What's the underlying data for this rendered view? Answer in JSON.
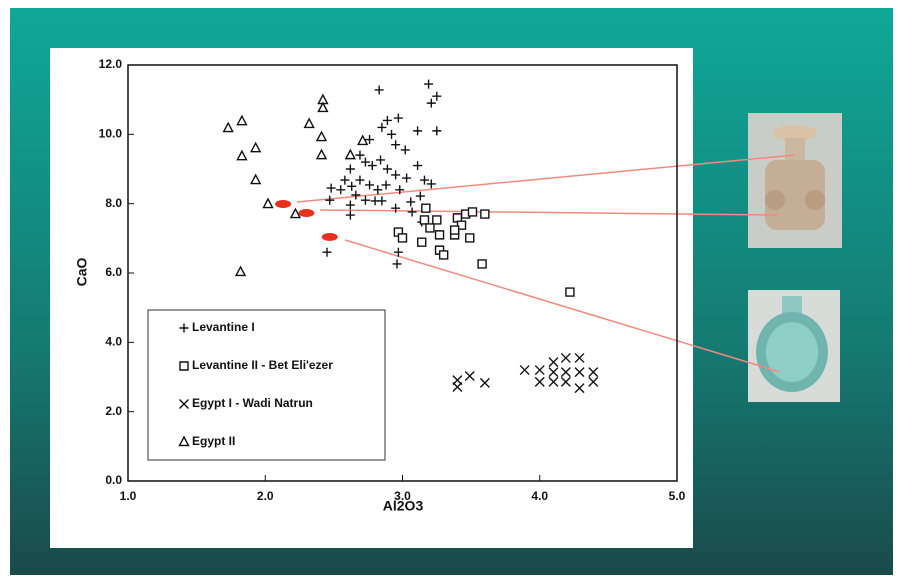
{
  "chart_data": {
    "type": "scatter",
    "xlabel": "Al2O3",
    "ylabel": "CaO",
    "xlim": [
      1,
      5
    ],
    "ylim": [
      0,
      12
    ],
    "xticks": [
      {
        "value": 1,
        "label": "1.0"
      },
      {
        "value": 2,
        "label": "2.0"
      },
      {
        "value": 3,
        "label": "3.0"
      },
      {
        "value": 4,
        "label": "4.0"
      },
      {
        "value": 5,
        "label": "5.0"
      }
    ],
    "yticks": [
      {
        "value": 0,
        "label": "0.0"
      },
      {
        "value": 2,
        "label": "2.0"
      },
      {
        "value": 4,
        "label": "4.0"
      },
      {
        "value": 6,
        "label": "6.0"
      },
      {
        "value": 8,
        "label": "8.0"
      },
      {
        "value": 10,
        "label": "10.0"
      },
      {
        "value": 12,
        "label": "12.0"
      }
    ],
    "legend": "lower left",
    "series": [
      {
        "name": "Levantine I",
        "marker": "plus",
        "color": "#111111",
        "x": [
          3.19,
          3.25,
          3.21,
          2.83,
          3.25,
          3.11,
          2.97,
          2.89,
          2.85,
          2.92,
          3.02,
          2.95,
          2.76,
          2.69,
          2.73,
          2.78,
          2.84,
          2.89,
          2.95,
          3.03,
          3.11,
          3.16,
          3.21,
          2.62,
          2.58,
          2.63,
          2.69,
          2.76,
          2.82,
          2.88,
          2.98,
          2.55,
          2.66,
          2.73,
          2.8,
          2.85,
          2.48,
          2.47,
          2.62,
          3.07,
          3.13,
          3.14,
          2.62,
          2.45,
          2.97,
          2.96,
          2.95,
          3.06
        ],
        "values": [
          11.45,
          11.1,
          10.9,
          11.28,
          10.1,
          10.1,
          10.47,
          10.4,
          10.2,
          10.0,
          9.55,
          9.7,
          9.85,
          9.4,
          9.2,
          9.1,
          9.26,
          9.0,
          8.83,
          8.74,
          9.1,
          8.68,
          8.57,
          9.0,
          8.68,
          8.5,
          8.68,
          8.54,
          8.4,
          8.54,
          8.4,
          8.4,
          8.25,
          8.1,
          8.08,
          8.08,
          8.45,
          8.1,
          7.96,
          7.76,
          8.22,
          7.47,
          7.67,
          6.6,
          6.6,
          6.26,
          7.87,
          8.05
        ]
      },
      {
        "name": "Levantine II - Bet Eli'ezer",
        "marker": "square",
        "color": "#111111",
        "x": [
          2.97,
          3.0,
          3.14,
          3.17,
          3.16,
          3.25,
          3.27,
          3.27,
          3.3,
          3.38,
          3.4,
          3.43,
          3.46,
          3.51,
          3.49,
          3.6,
          3.58,
          4.22,
          3.38,
          3.2
        ],
        "values": [
          7.18,
          7.01,
          6.89,
          7.87,
          7.53,
          7.53,
          7.1,
          6.66,
          6.52,
          7.1,
          7.59,
          7.38,
          7.7,
          7.76,
          7.01,
          7.7,
          6.26,
          5.45,
          7.24,
          7.3
        ]
      },
      {
        "name": "Egypt I - Wadi Natrun",
        "marker": "cross",
        "color": "#111111",
        "x": [
          3.4,
          3.4,
          3.49,
          3.6,
          3.89,
          4.0,
          4.0,
          4.1,
          4.1,
          4.1,
          4.19,
          4.19,
          4.19,
          4.29,
          4.29,
          4.29,
          4.39,
          4.39
        ],
        "values": [
          2.91,
          2.71,
          3.03,
          2.83,
          3.2,
          3.2,
          2.86,
          3.43,
          3.14,
          2.86,
          3.55,
          3.14,
          2.86,
          3.55,
          3.14,
          2.68,
          3.14,
          2.86
        ]
      },
      {
        "name": "Egypt II",
        "marker": "triangle",
        "color": "#111111",
        "x": [
          1.73,
          1.83,
          1.83,
          1.93,
          1.93,
          2.02,
          1.82,
          2.32,
          2.41,
          2.42,
          2.42,
          2.41,
          2.22,
          2.62,
          2.71
        ],
        "values": [
          10.18,
          10.38,
          9.37,
          9.6,
          8.68,
          7.99,
          6.03,
          10.3,
          9.92,
          10.99,
          10.76,
          9.4,
          7.7,
          9.4,
          9.81
        ]
      }
    ],
    "highlights": {
      "color": "#e8301c",
      "x": [
        2.13,
        2.3,
        2.47
      ],
      "values": [
        7.99,
        7.73,
        7.04
      ]
    }
  }
}
